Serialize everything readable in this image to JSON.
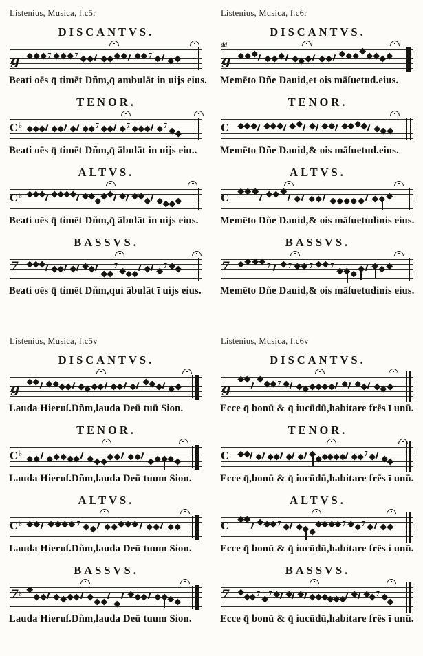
{
  "ink_color": "#171512",
  "paper_color": "#fdfcf9",
  "quadrants": [
    {
      "citation": "Listenius, Musica, f.c5r",
      "voices": [
        {
          "title": "DISCANTVS.",
          "clef": "g",
          "flat": false,
          "melody": "d3 d3 d3 R d3 d3 d3 R d4 d4 r d4 d4 d3 d3 r d3 d3 R d4 r d5 d4",
          "fermatas": [
            52,
            94
          ],
          "end": "double",
          "lyric": "Beati oēs q̄ timēt Dñm,q̄ ambulāt in uijs eius."
        },
        {
          "title": "TENOR.",
          "clef": "c",
          "flat": true,
          "melody": "d4 d4 d4 r d4 d4 r d4 r d4 d4 R d4 d4 r d4 R d4 d4 d4 r d4 R d5 d6",
          "fermatas": [
            58,
            96
          ],
          "end": "double",
          "lyric": "Beati oēs q̄ timēt Dñm,q̄ ābulāt in uijs eiu.."
        },
        {
          "title": "ALTVS.",
          "clef": "c",
          "flat": true,
          "melody": "d2 d2 d2 r d2 d2 d2 d2 r d3 d3 d5 d3 d2 r d3 r d3 d3 d5 r d5 d6 d6 d5",
          "fermatas": [
            50,
            93
          ],
          "end": "double",
          "lyric": "Beati oēs q̄ timēt Dñm,q̄ ābulāt in uijs eius."
        },
        {
          "title": "BASSVS.",
          "clef": "f",
          "flat": false,
          "melody": "d2 d2 d2 r d4 d4 r d4 r d3 d4 r d6 d6 R d5 d6 d6 r d4 r d5 R d3 d4",
          "fermatas": [
            55,
            95
          ],
          "end": "double",
          "lyric": "Beati oēs q̄ timēt Dñm,qui ābulāt ī uijs eius."
        }
      ]
    },
    {
      "citation": "Listenius, Musica, f.c6r",
      "voices": [
        {
          "title": "DISCANTVS.",
          "clef": "g",
          "flat": false,
          "corner_mark": "dd",
          "melody": "d3 d3 d2 r d4 d4 d3 r d4 d5 d4 r d4 d4 r d2 d3 d3 d1 d3 d3 d4 d3",
          "fermatas": [
            42,
            88
          ],
          "end": "thick",
          "lyric": "Memēto Dñe Dauid,et ois māſuetud.eius."
        },
        {
          "title": "TENOR.",
          "clef": "c",
          "flat": false,
          "melody": "d3 d3 d3 r d3 d3 d3 r d3 d2 r d3 r d3 d3 r d3 d3 d2 d3 r d4 d5 d5",
          "fermatas": [
            88
          ],
          "end": "double",
          "lyric": "Memēto Dñe Dauid,& ois māſuetud.eius."
        },
        {
          "title": "ALTVS.",
          "clef": "c",
          "flat": false,
          "melody": "d1 d1 d1 r d2 d2 d1 r d4 r d4 d4 r d5 d5 d5 d5 d5 r d4 t4 d3",
          "fermatas": [
            33,
            90
          ],
          "end": "single",
          "lyric": "Memēto Dñe Dauid,& ois māſuetudinis eius."
        },
        {
          "title": "BASSVS.",
          "clef": "f",
          "flat": false,
          "melody": "d2 d1 d1 d1 R r d2 R d3 d3 R d2 d2 R d5 t5 d6 t4 r t3 d4 d3",
          "fermatas": [
            36,
            90
          ],
          "end": "single",
          "lyric": "Memēto Dñe Dauid,& ois māſuetudinis eius."
        }
      ]
    },
    {
      "citation": "Listenius, Musica, f.c5v",
      "voices": [
        {
          "title": "DISCANTVS.",
          "clef": "g",
          "flat": false,
          "melody": "d2 d2 r d3 d3 d4 d4 r d4 d5 d4 d4 r d4 d4 r d4 r d2 d3 d4 r d5 d4",
          "fermatas": [
            45,
            90
          ],
          "end": "thick",
          "lyric": "Lauda Hieruſ.Dñm,lauda Deū tuū Sion."
        },
        {
          "title": "TENOR.",
          "clef": "c",
          "flat": true,
          "melody": "d5 d5 r d5 d4 d4 d5 d5 r d5 d6 d6 d4 d4 r d4 d4 r d6 d5 t5 d5 d6",
          "fermatas": [
            48,
            88
          ],
          "end": "thick",
          "lyric": "Lauda Hieruſ.Dñm,lauda Deū tuum Sion."
        },
        {
          "title": "ALTVS.",
          "clef": "c",
          "flat": true,
          "melody": "d3 d3 r d3 d3 d3 d3 R d4 d5 r d4 d4 d3 d3 d3 r d4 d4 r d4 d4",
          "fermatas": [
            47,
            89
          ],
          "end": "thick",
          "lyric": "Lauda Hieruſ.Dñm,lauda Deū tuum Sion."
        },
        {
          "title": "BASSVS.",
          "clef": "f",
          "flat": true,
          "melody": "d1 d4 d4 r d4 d5 d4 d4 r d4 d6 d6 r d7 r d3 d4 d4 r d4 t4 d5 d6",
          "fermatas": [
            37,
            89
          ],
          "end": "thick",
          "lyric": "Lauda Hieruſ.Dñm,lauda Deū tuum Sion."
        }
      ]
    },
    {
      "citation": "Listenius, Musica, f.c6v",
      "voices": [
        {
          "title": "DISCANTVS.",
          "clef": "g",
          "flat": false,
          "melody": "d1 d1 r d1 d3 d3 R d3 r d4 d5 d4 d4 d4 d4 r d3 r d3 d4 r d4 d5 d4",
          "fermatas": [
            49,
            87
          ],
          "end": "final",
          "lyric": "Ecce q̄ bonū & q̄ iucūdū,habitare frēs ī unū."
        },
        {
          "title": "TENOR.",
          "clef": "c",
          "flat": false,
          "melody": "d3 d3 r d4 r d4 d4 r d4 r d4 r t3 d5 d4 d4 d4 d4 r d4 d4 R d4 r d5 d6",
          "fermatas": [
            55,
            92
          ],
          "end": "final",
          "lyric": "Ecce q̄,bonū & q̄ iucūdū,habitare frēs ī unū."
        },
        {
          "title": "ALTVS.",
          "clef": "c",
          "flat": false,
          "melody": "d1 d1 r d2 d3 d3 R d4 r d4 t5 d6 d3 d3 d3 d3 R d3 d4 R d4 r d4 d4",
          "fermatas": [
            47,
            86
          ],
          "end": "final",
          "lyric": "Ecce q̄ bonū & q̄ iucūdū,habitare frēs i unū."
        },
        {
          "title": "BASSVS.",
          "clef": "f",
          "flat": false,
          "melody": "d2 d4 d4 R d5 R d3 r d3 r d3 r d4 d4 d4 d5 d5 d5 r d3 r d3 d4 R d4 d6",
          "fermatas": [
            46,
            86
          ],
          "end": "final",
          "lyric": "Ecce q̄ bonū & q̄ iucūdū,habitare frēs ī unū."
        }
      ]
    }
  ]
}
